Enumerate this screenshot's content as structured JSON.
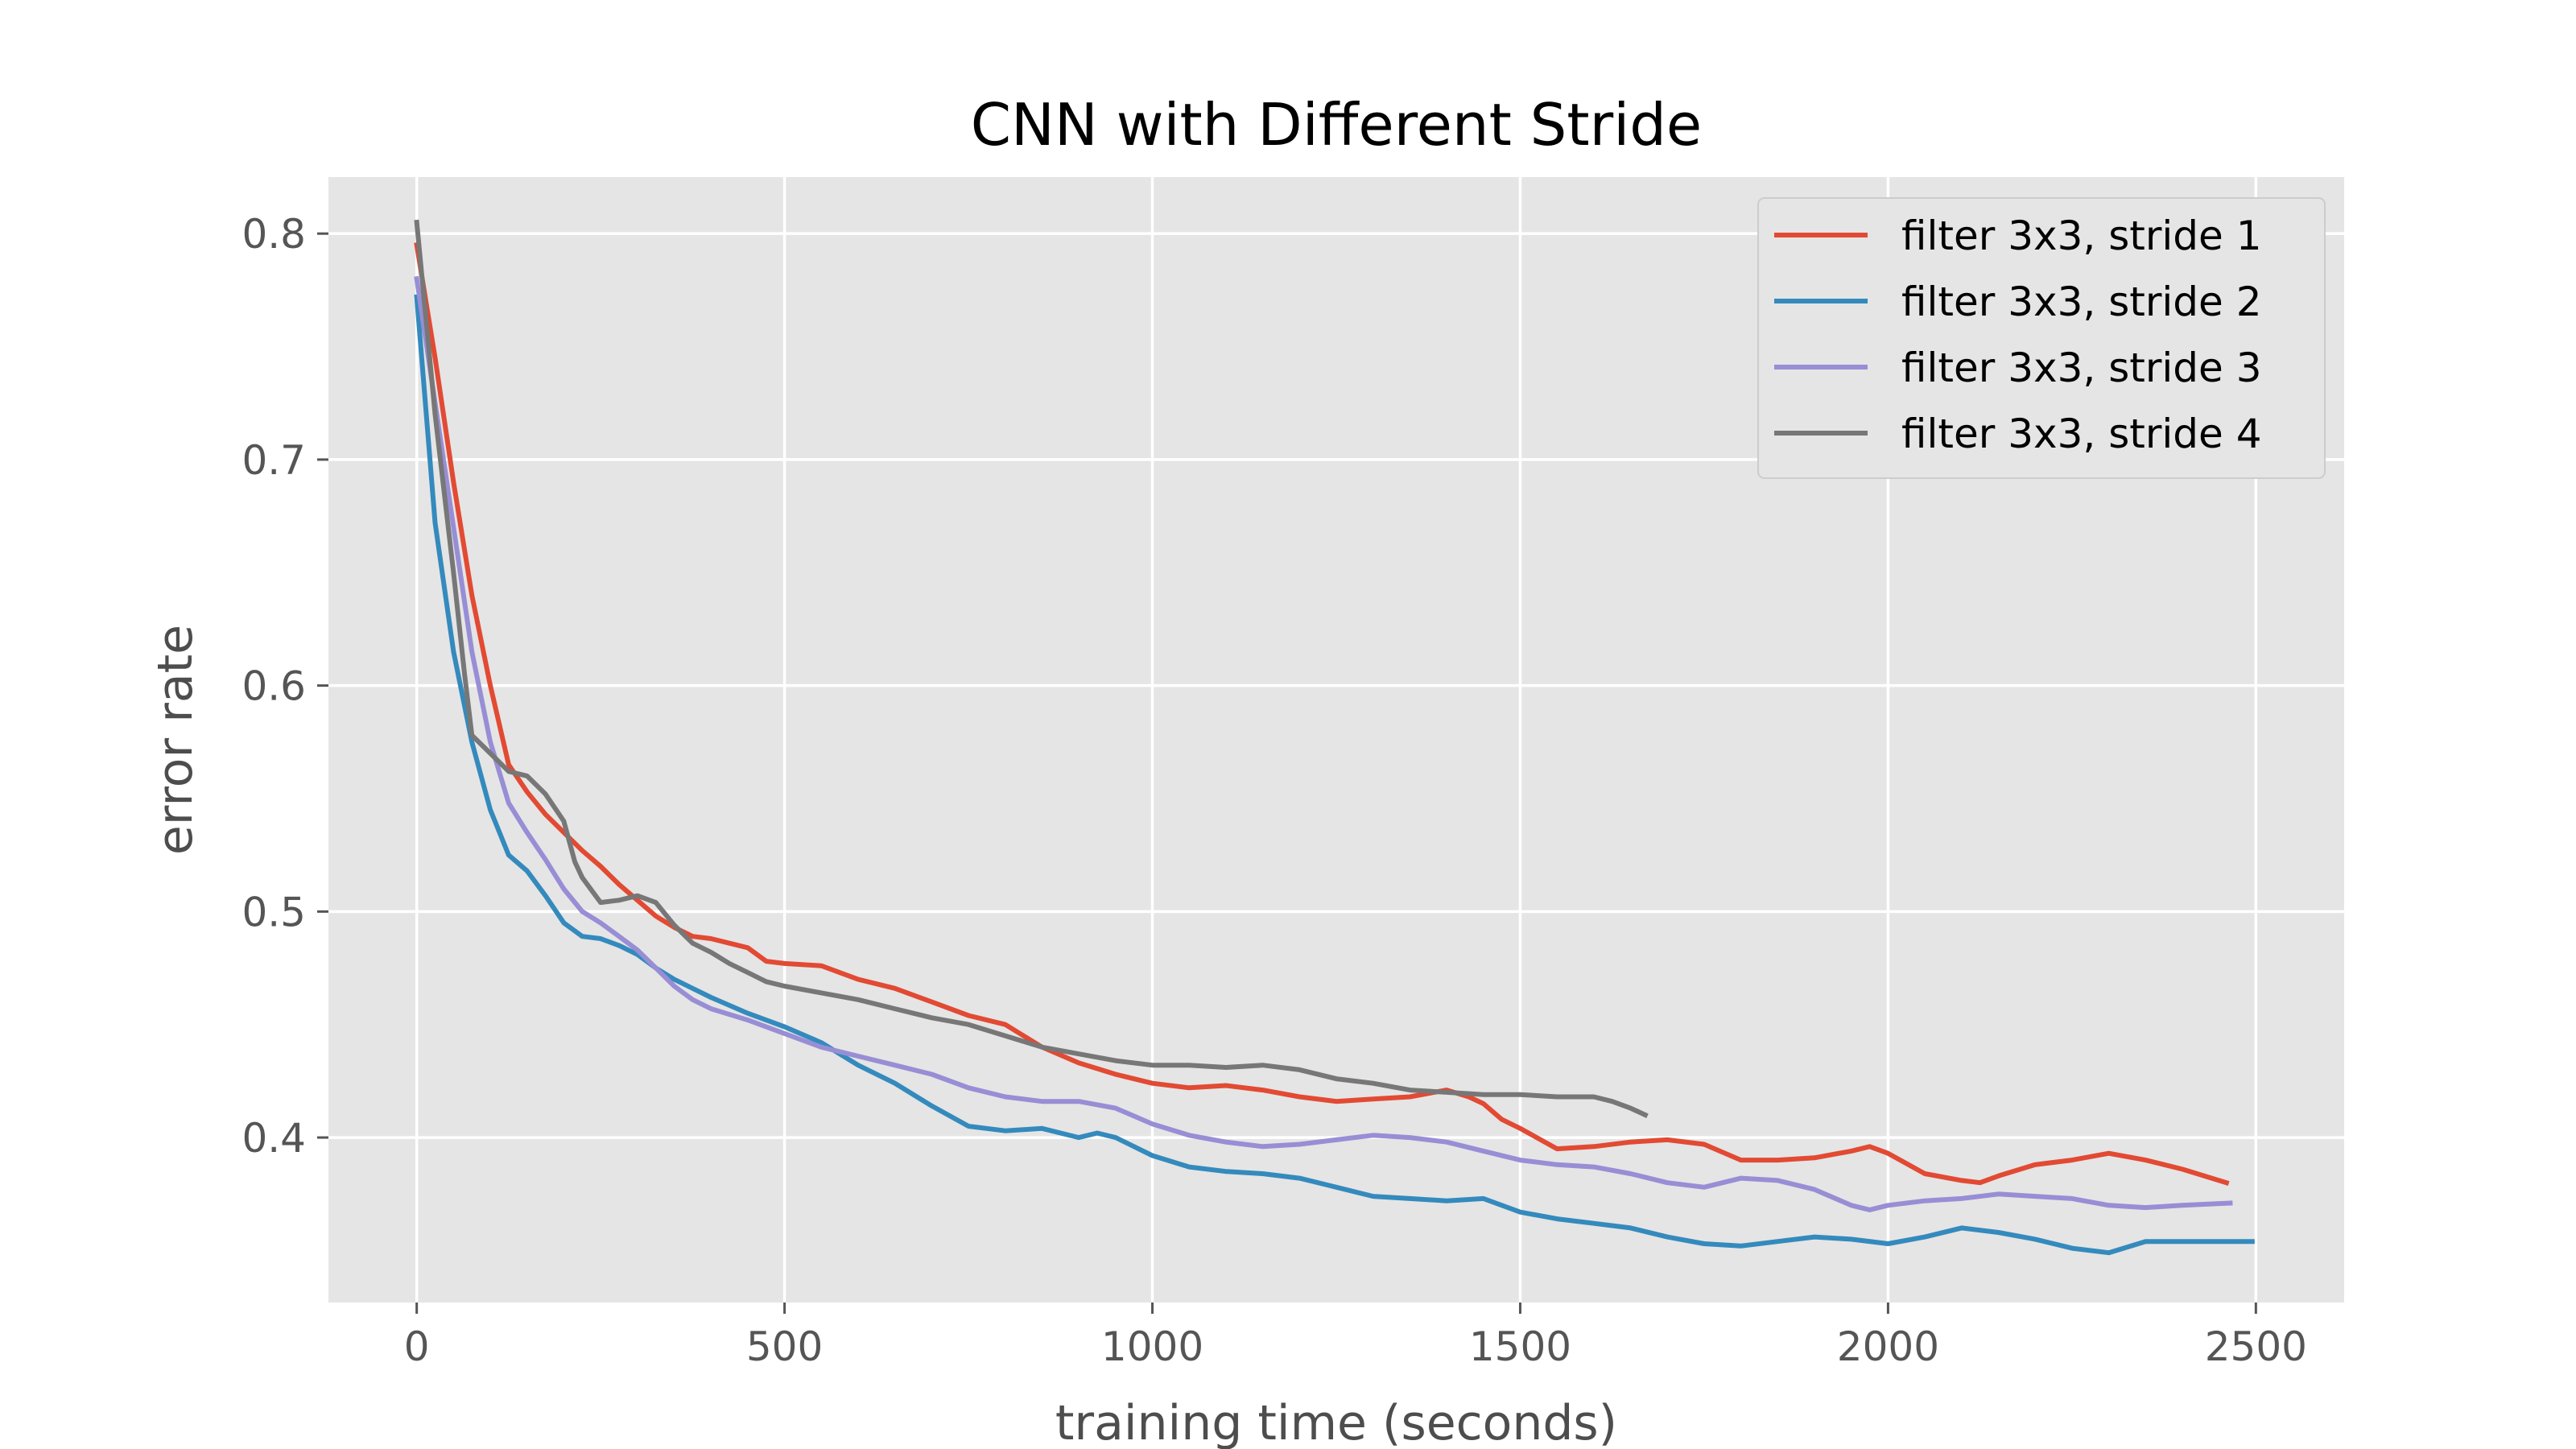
{
  "chart_data": {
    "type": "line",
    "title": "CNN with Different Stride",
    "xlabel": "training time (seconds)",
    "ylabel": "error rate",
    "xlim": [
      -120,
      2620
    ],
    "ylim": [
      0.327,
      0.825
    ],
    "xticks": [
      0,
      500,
      1000,
      1500,
      2000,
      2500
    ],
    "xtick_labels": [
      "0",
      "500",
      "1000",
      "1500",
      "2000",
      "2500"
    ],
    "yticks": [
      0.4,
      0.5,
      0.6,
      0.7,
      0.8
    ],
    "ytick_labels": [
      "0.4",
      "0.5",
      "0.6",
      "0.7",
      "0.8"
    ],
    "grid": true,
    "legend_position": "top-right",
    "series": [
      {
        "name": "filter 3x3, stride 1",
        "color": "#e24a33",
        "points": [
          [
            0,
            0.795
          ],
          [
            25,
            0.745
          ],
          [
            50,
            0.69
          ],
          [
            75,
            0.64
          ],
          [
            100,
            0.6
          ],
          [
            125,
            0.565
          ],
          [
            150,
            0.553
          ],
          [
            175,
            0.543
          ],
          [
            200,
            0.535
          ],
          [
            225,
            0.527
          ],
          [
            250,
            0.52
          ],
          [
            275,
            0.512
          ],
          [
            300,
            0.505
          ],
          [
            325,
            0.498
          ],
          [
            350,
            0.493
          ],
          [
            375,
            0.489
          ],
          [
            400,
            0.488
          ],
          [
            425,
            0.486
          ],
          [
            450,
            0.484
          ],
          [
            475,
            0.478
          ],
          [
            500,
            0.477
          ],
          [
            550,
            0.476
          ],
          [
            600,
            0.47
          ],
          [
            650,
            0.466
          ],
          [
            700,
            0.46
          ],
          [
            750,
            0.454
          ],
          [
            800,
            0.45
          ],
          [
            850,
            0.44
          ],
          [
            900,
            0.433
          ],
          [
            950,
            0.428
          ],
          [
            1000,
            0.424
          ],
          [
            1050,
            0.422
          ],
          [
            1100,
            0.423
          ],
          [
            1150,
            0.421
          ],
          [
            1200,
            0.418
          ],
          [
            1250,
            0.416
          ],
          [
            1300,
            0.417
          ],
          [
            1350,
            0.418
          ],
          [
            1400,
            0.421
          ],
          [
            1430,
            0.418
          ],
          [
            1450,
            0.415
          ],
          [
            1475,
            0.408
          ],
          [
            1500,
            0.404
          ],
          [
            1550,
            0.395
          ],
          [
            1600,
            0.396
          ],
          [
            1650,
            0.398
          ],
          [
            1700,
            0.399
          ],
          [
            1750,
            0.397
          ],
          [
            1800,
            0.39
          ],
          [
            1850,
            0.39
          ],
          [
            1900,
            0.391
          ],
          [
            1950,
            0.394
          ],
          [
            1975,
            0.396
          ],
          [
            2000,
            0.393
          ],
          [
            2050,
            0.384
          ],
          [
            2100,
            0.381
          ],
          [
            2125,
            0.38
          ],
          [
            2150,
            0.383
          ],
          [
            2200,
            0.388
          ],
          [
            2250,
            0.39
          ],
          [
            2300,
            0.393
          ],
          [
            2350,
            0.39
          ],
          [
            2400,
            0.386
          ],
          [
            2460,
            0.38
          ]
        ]
      },
      {
        "name": "filter 3x3, stride 2",
        "color": "#348abd",
        "points": [
          [
            0,
            0.772
          ],
          [
            25,
            0.672
          ],
          [
            50,
            0.615
          ],
          [
            75,
            0.575
          ],
          [
            100,
            0.545
          ],
          [
            125,
            0.525
          ],
          [
            150,
            0.518
          ],
          [
            175,
            0.507
          ],
          [
            200,
            0.495
          ],
          [
            225,
            0.489
          ],
          [
            250,
            0.488
          ],
          [
            275,
            0.485
          ],
          [
            300,
            0.481
          ],
          [
            325,
            0.475
          ],
          [
            350,
            0.47
          ],
          [
            375,
            0.466
          ],
          [
            400,
            0.462
          ],
          [
            450,
            0.455
          ],
          [
            500,
            0.449
          ],
          [
            550,
            0.442
          ],
          [
            600,
            0.432
          ],
          [
            650,
            0.424
          ],
          [
            700,
            0.414
          ],
          [
            750,
            0.405
          ],
          [
            800,
            0.403
          ],
          [
            850,
            0.404
          ],
          [
            900,
            0.4
          ],
          [
            925,
            0.402
          ],
          [
            950,
            0.4
          ],
          [
            1000,
            0.392
          ],
          [
            1050,
            0.387
          ],
          [
            1100,
            0.385
          ],
          [
            1150,
            0.384
          ],
          [
            1200,
            0.382
          ],
          [
            1250,
            0.378
          ],
          [
            1300,
            0.374
          ],
          [
            1350,
            0.373
          ],
          [
            1400,
            0.372
          ],
          [
            1450,
            0.373
          ],
          [
            1500,
            0.367
          ],
          [
            1550,
            0.364
          ],
          [
            1600,
            0.362
          ],
          [
            1650,
            0.36
          ],
          [
            1700,
            0.356
          ],
          [
            1750,
            0.353
          ],
          [
            1800,
            0.352
          ],
          [
            1850,
            0.354
          ],
          [
            1900,
            0.356
          ],
          [
            1950,
            0.355
          ],
          [
            2000,
            0.353
          ],
          [
            2050,
            0.356
          ],
          [
            2100,
            0.36
          ],
          [
            2150,
            0.358
          ],
          [
            2200,
            0.355
          ],
          [
            2250,
            0.351
          ],
          [
            2300,
            0.349
          ],
          [
            2350,
            0.354
          ],
          [
            2400,
            0.354
          ],
          [
            2450,
            0.354
          ],
          [
            2495,
            0.354
          ]
        ]
      },
      {
        "name": "filter 3x3, stride 3",
        "color": "#988ed5",
        "points": [
          [
            0,
            0.78
          ],
          [
            25,
            0.725
          ],
          [
            50,
            0.67
          ],
          [
            75,
            0.615
          ],
          [
            100,
            0.575
          ],
          [
            125,
            0.548
          ],
          [
            150,
            0.535
          ],
          [
            175,
            0.523
          ],
          [
            200,
            0.51
          ],
          [
            225,
            0.5
          ],
          [
            250,
            0.495
          ],
          [
            275,
            0.489
          ],
          [
            300,
            0.483
          ],
          [
            325,
            0.475
          ],
          [
            350,
            0.467
          ],
          [
            375,
            0.461
          ],
          [
            400,
            0.457
          ],
          [
            450,
            0.452
          ],
          [
            500,
            0.446
          ],
          [
            550,
            0.44
          ],
          [
            600,
            0.436
          ],
          [
            650,
            0.432
          ],
          [
            700,
            0.428
          ],
          [
            750,
            0.422
          ],
          [
            800,
            0.418
          ],
          [
            850,
            0.416
          ],
          [
            900,
            0.416
          ],
          [
            950,
            0.413
          ],
          [
            1000,
            0.406
          ],
          [
            1050,
            0.401
          ],
          [
            1100,
            0.398
          ],
          [
            1150,
            0.396
          ],
          [
            1200,
            0.397
          ],
          [
            1250,
            0.399
          ],
          [
            1300,
            0.401
          ],
          [
            1350,
            0.4
          ],
          [
            1400,
            0.398
          ],
          [
            1450,
            0.394
          ],
          [
            1500,
            0.39
          ],
          [
            1550,
            0.388
          ],
          [
            1600,
            0.387
          ],
          [
            1650,
            0.384
          ],
          [
            1700,
            0.38
          ],
          [
            1750,
            0.378
          ],
          [
            1800,
            0.382
          ],
          [
            1850,
            0.381
          ],
          [
            1900,
            0.377
          ],
          [
            1950,
            0.37
          ],
          [
            1975,
            0.368
          ],
          [
            2000,
            0.37
          ],
          [
            2050,
            0.372
          ],
          [
            2100,
            0.373
          ],
          [
            2150,
            0.375
          ],
          [
            2200,
            0.374
          ],
          [
            2250,
            0.373
          ],
          [
            2300,
            0.37
          ],
          [
            2350,
            0.369
          ],
          [
            2400,
            0.37
          ],
          [
            2465,
            0.371
          ]
        ]
      },
      {
        "name": "filter 3x3, stride 4",
        "color": "#777777",
        "points": [
          [
            0,
            0.805
          ],
          [
            25,
            0.72
          ],
          [
            50,
            0.65
          ],
          [
            65,
            0.605
          ],
          [
            75,
            0.578
          ],
          [
            100,
            0.57
          ],
          [
            125,
            0.562
          ],
          [
            150,
            0.56
          ],
          [
            175,
            0.552
          ],
          [
            200,
            0.54
          ],
          [
            215,
            0.522
          ],
          [
            225,
            0.515
          ],
          [
            250,
            0.504
          ],
          [
            275,
            0.505
          ],
          [
            300,
            0.507
          ],
          [
            325,
            0.504
          ],
          [
            350,
            0.494
          ],
          [
            375,
            0.486
          ],
          [
            400,
            0.482
          ],
          [
            425,
            0.477
          ],
          [
            450,
            0.473
          ],
          [
            475,
            0.469
          ],
          [
            500,
            0.467
          ],
          [
            550,
            0.464
          ],
          [
            600,
            0.461
          ],
          [
            650,
            0.457
          ],
          [
            700,
            0.453
          ],
          [
            750,
            0.45
          ],
          [
            800,
            0.445
          ],
          [
            850,
            0.44
          ],
          [
            900,
            0.437
          ],
          [
            950,
            0.434
          ],
          [
            1000,
            0.432
          ],
          [
            1050,
            0.432
          ],
          [
            1100,
            0.431
          ],
          [
            1150,
            0.432
          ],
          [
            1200,
            0.43
          ],
          [
            1250,
            0.426
          ],
          [
            1300,
            0.424
          ],
          [
            1350,
            0.421
          ],
          [
            1400,
            0.42
          ],
          [
            1450,
            0.419
          ],
          [
            1500,
            0.419
          ],
          [
            1550,
            0.418
          ],
          [
            1600,
            0.418
          ],
          [
            1625,
            0.416
          ],
          [
            1650,
            0.413
          ],
          [
            1670,
            0.41
          ]
        ]
      }
    ]
  }
}
